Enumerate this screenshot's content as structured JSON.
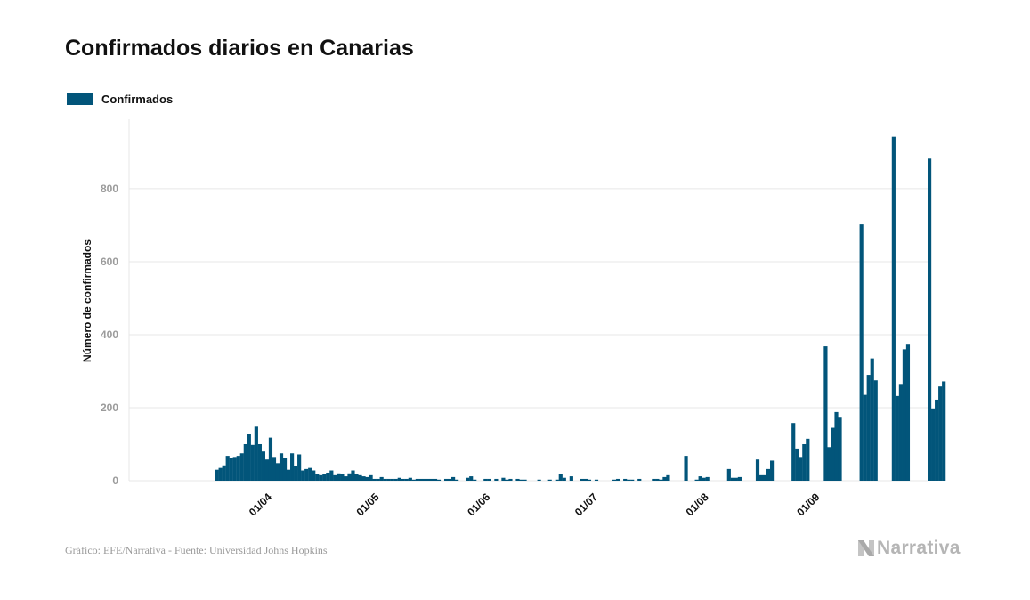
{
  "title": "Confirmados diarios en Canarias",
  "legend": {
    "label": "Confirmados",
    "color": "#02557a"
  },
  "footer": {
    "credit": "Gráfico: EFE/Narrativa - Fuente: Universidad Johns Hopkins",
    "brand": "Narrativa",
    "brand_icon": "narrativa-logo-icon"
  },
  "colors": {
    "bar": "#02557a",
    "grid": "#e7e7e7",
    "tick": "#9b9b9b",
    "axis_label": "#111111"
  },
  "chart_data": {
    "type": "bar",
    "title": "Confirmados diarios en Canarias",
    "xlabel": "",
    "ylabel": "Número de confirmados",
    "ylim": [
      0,
      990
    ],
    "yticks": [
      0,
      200,
      400,
      600,
      800
    ],
    "grid": true,
    "legend_position": "top-left",
    "x_range_days": [
      -38.5,
      184.5
    ],
    "x_tick_labels": [
      {
        "label": "01/04",
        "day": 0
      },
      {
        "label": "01/05",
        "day": 30
      },
      {
        "label": "01/06",
        "day": 61
      },
      {
        "label": "01/07",
        "day": 91
      },
      {
        "label": "01/08",
        "day": 122
      },
      {
        "label": "01/09",
        "day": 153
      }
    ],
    "series": [
      {
        "name": "Confirmados",
        "start_day": -14,
        "values": [
          30,
          35,
          42,
          68,
          62,
          65,
          68,
          75,
          100,
          128,
          98,
          148,
          100,
          80,
          58,
          118,
          65,
          48,
          75,
          62,
          30,
          75,
          40,
          72,
          28,
          32,
          35,
          28,
          18,
          15,
          18,
          22,
          28,
          15,
          20,
          18,
          12,
          20,
          28,
          18,
          15,
          12,
          10,
          15,
          5,
          5,
          10,
          5,
          5,
          5,
          5,
          8,
          5,
          5,
          8,
          3,
          5,
          5,
          5,
          5,
          5,
          5,
          3,
          0,
          5,
          5,
          10,
          3,
          0,
          0,
          8,
          12,
          3,
          0,
          0,
          5,
          5,
          0,
          5,
          0,
          8,
          3,
          5,
          0,
          5,
          3,
          3,
          0,
          0,
          0,
          3,
          0,
          0,
          3,
          0,
          3,
          18,
          8,
          0,
          12,
          0,
          0,
          5,
          5,
          3,
          0,
          3,
          0,
          0,
          0,
          0,
          3,
          5,
          0,
          5,
          3,
          3,
          0,
          5,
          0,
          0,
          0,
          5,
          5,
          3,
          10,
          15,
          0,
          0,
          0,
          0,
          68,
          0,
          0,
          3,
          12,
          8,
          10,
          0,
          0,
          0,
          0,
          0,
          32,
          8,
          8,
          10,
          0,
          0,
          0,
          0,
          58,
          15,
          15,
          32,
          55,
          0,
          0,
          0,
          0,
          0,
          158,
          88,
          65,
          100,
          115,
          0,
          0,
          0,
          0,
          368,
          92,
          145,
          188,
          175,
          0,
          0,
          0,
          0,
          0,
          702,
          235,
          290,
          335,
          275,
          0,
          0,
          0,
          0,
          942,
          232,
          265,
          360,
          375,
          0,
          0,
          0,
          0,
          0,
          882,
          198,
          222,
          258,
          272
        ]
      }
    ]
  }
}
